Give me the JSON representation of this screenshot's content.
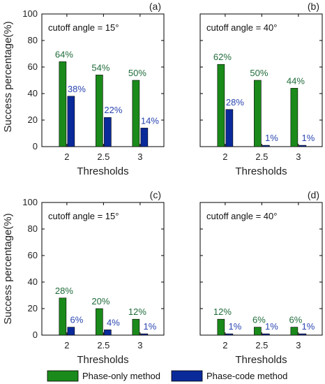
{
  "colors": {
    "phase_only": "#1a8a1a",
    "phase_code": "#0a2a9a",
    "phase_only_label": "#1f6b3a",
    "phase_code_label": "#2a45b0"
  },
  "ylabel": "Success percentage(%)",
  "legend": {
    "phase_only": "Phase-only method",
    "phase_code": "Phase-code method"
  },
  "chart_data": [
    {
      "type": "bar",
      "panel": "(a)",
      "annotation": "cutoff angle = 15°",
      "categories": [
        "2",
        "2.5",
        "3"
      ],
      "xlabel": "Thresholds",
      "ylim": [
        0,
        100
      ],
      "yticks": [
        "0",
        "20",
        "40",
        "60",
        "80",
        "100"
      ],
      "series": [
        {
          "name": "Phase-only method",
          "values": [
            64,
            54,
            50
          ],
          "labels": [
            "64%",
            "54%",
            "50%"
          ]
        },
        {
          "name": "Phase-code method",
          "values": [
            38,
            22,
            14
          ],
          "labels": [
            "38%",
            "22%",
            "14%"
          ]
        }
      ]
    },
    {
      "type": "bar",
      "panel": "(b)",
      "annotation": "cutoff angle = 40°",
      "categories": [
        "2",
        "2.5",
        "3"
      ],
      "xlabel": "Thresholds",
      "ylim": [
        0,
        100
      ],
      "yticks": [],
      "series": [
        {
          "name": "Phase-only method",
          "values": [
            62,
            50,
            44
          ],
          "labels": [
            "62%",
            "50%",
            "44%"
          ]
        },
        {
          "name": "Phase-code method",
          "values": [
            28,
            1,
            1
          ],
          "labels": [
            "28%",
            "1%",
            "1%"
          ]
        }
      ]
    },
    {
      "type": "bar",
      "panel": "(c)",
      "annotation": "cutoff angle = 15°",
      "categories": [
        "2",
        "2.5",
        "3"
      ],
      "xlabel": "Thresholds",
      "ylim": [
        0,
        100
      ],
      "yticks": [
        "0",
        "20",
        "40",
        "60",
        "80",
        "100"
      ],
      "series": [
        {
          "name": "Phase-only method",
          "values": [
            28,
            20,
            12
          ],
          "labels": [
            "28%",
            "20%",
            "12%"
          ]
        },
        {
          "name": "Phase-code method",
          "values": [
            6,
            4,
            1
          ],
          "labels": [
            "6%",
            "4%",
            "1%"
          ]
        }
      ]
    },
    {
      "type": "bar",
      "panel": "(d)",
      "annotation": "cutoff angle = 40°",
      "categories": [
        "2",
        "2.5",
        "3"
      ],
      "xlabel": "Thresholds",
      "ylim": [
        0,
        100
      ],
      "yticks": [],
      "series": [
        {
          "name": "Phase-only method",
          "values": [
            12,
            6,
            6
          ],
          "labels": [
            "12%",
            "6%",
            "6%"
          ]
        },
        {
          "name": "Phase-code method",
          "values": [
            1,
            1,
            1
          ],
          "labels": [
            "1%",
            "1%",
            "1%"
          ]
        }
      ]
    }
  ]
}
